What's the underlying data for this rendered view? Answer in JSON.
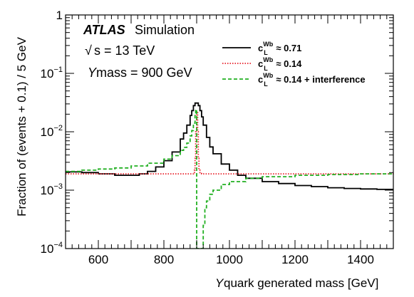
{
  "chart_data": {
    "type": "line",
    "title": "",
    "xlabel": "Y quark generated mass [GeV]",
    "xlabel_italic_part": "Y",
    "xlabel_rest": " quark generated mass [GeV]",
    "ylabel": "Fraction of (events + 0.1) / 5 GeV",
    "xlim": [
      500,
      1500
    ],
    "ylim": [
      0.0001,
      1
    ],
    "yscale": "log",
    "grid": false,
    "legend_position": "top-right",
    "x_ticks": [
      {
        "value": 600,
        "label": "600"
      },
      {
        "value": 800,
        "label": "800"
      },
      {
        "value": 1000,
        "label": "1000"
      },
      {
        "value": 1200,
        "label": "1200"
      },
      {
        "value": 1400,
        "label": "1400"
      }
    ],
    "y_ticks": [
      {
        "value": 0.0001,
        "base": "10",
        "exp": "−4"
      },
      {
        "value": 0.001,
        "base": "10",
        "exp": "−3"
      },
      {
        "value": 0.01,
        "base": "10",
        "exp": "−2"
      },
      {
        "value": 0.1,
        "base": "10",
        "exp": "−1"
      },
      {
        "value": 1,
        "base": "1",
        "exp": ""
      }
    ],
    "annotations": {
      "atlas": "ATLAS",
      "simulation": "Simulation",
      "sqrt_symbol": "√",
      "energy": "s = 13 TeV",
      "mass_italic": "Y",
      "mass_rest": " mass = 900 GeV"
    },
    "series": [
      {
        "name_main": "c",
        "name_sub": "L",
        "name_sup": "Wb",
        "name_rest": " ≈ 0.71",
        "color": "#000000",
        "style": "solid",
        "x": [
          500,
          550,
          600,
          650,
          700,
          725,
          750,
          775,
          800,
          825,
          850,
          860,
          870,
          880,
          885,
          890,
          895,
          900,
          905,
          910,
          915,
          920,
          930,
          940,
          950,
          975,
          1000,
          1025,
          1050,
          1100,
          1150,
          1200,
          1250,
          1300,
          1350,
          1400,
          1450,
          1500
        ],
        "y": [
          0.00205,
          0.002,
          0.0019,
          0.0018,
          0.0018,
          0.0019,
          0.0021,
          0.0025,
          0.0032,
          0.0045,
          0.0075,
          0.0095,
          0.013,
          0.019,
          0.023,
          0.028,
          0.031,
          0.031,
          0.028,
          0.023,
          0.018,
          0.013,
          0.008,
          0.0055,
          0.0042,
          0.0028,
          0.0022,
          0.0018,
          0.0016,
          0.0014,
          0.0013,
          0.0012,
          0.00115,
          0.0011,
          0.00107,
          0.00105,
          0.00103,
          0.001
        ]
      },
      {
        "name_main": "c",
        "name_sub": "L",
        "name_sup": "Wb",
        "name_rest": " ≈ 0.14",
        "color": "#e8202a",
        "style": "dotted",
        "x": [
          500,
          600,
          700,
          800,
          850,
          870,
          880,
          885,
          890,
          893,
          895,
          897,
          900,
          903,
          905,
          907,
          910,
          915,
          920,
          930,
          950,
          1000,
          1100,
          1200,
          1300,
          1400,
          1500
        ],
        "y": [
          0.0019,
          0.0019,
          0.0019,
          0.0019,
          0.0019,
          0.0019,
          0.0019,
          0.0019,
          0.002,
          0.0022,
          0.0035,
          0.01,
          0.022,
          0.01,
          0.0035,
          0.0022,
          0.002,
          0.0019,
          0.0019,
          0.0019,
          0.0019,
          0.0019,
          0.0019,
          0.0019,
          0.0019,
          0.0019,
          0.0019
        ]
      },
      {
        "name_main": "c",
        "name_sub": "L",
        "name_sup": "Wb",
        "name_rest": " ≈ 0.14 + interference",
        "color": "#22b022",
        "style": "dashed",
        "x": [
          500,
          550,
          600,
          650,
          700,
          750,
          800,
          825,
          850,
          860,
          870,
          880,
          885,
          890,
          895,
          897,
          900,
          902,
          905,
          910,
          915,
          920,
          925,
          930,
          940,
          950,
          975,
          1000,
          1050,
          1100,
          1200,
          1300,
          1400,
          1500
        ],
        "y": [
          0.0021,
          0.0022,
          0.0023,
          0.0024,
          0.0026,
          0.0029,
          0.0034,
          0.0039,
          0.0048,
          0.0054,
          0.0064,
          0.0085,
          0.0105,
          0.014,
          0.02,
          0.024,
          0.0001,
          0.0001,
          0.0001,
          0.0001,
          0.0001,
          0.00025,
          0.0005,
          0.00065,
          0.00085,
          0.001,
          0.00125,
          0.0014,
          0.0016,
          0.0017,
          0.0018,
          0.00185,
          0.0019,
          0.0019
        ]
      }
    ]
  }
}
